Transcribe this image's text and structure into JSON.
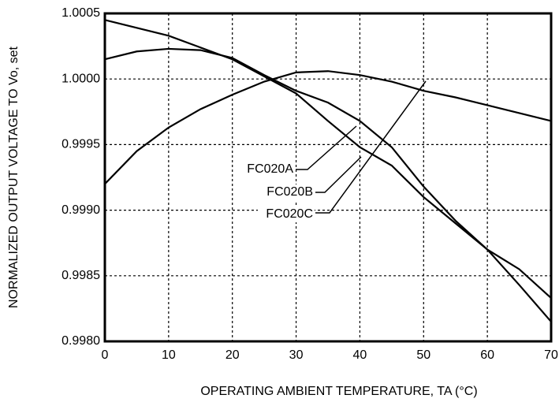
{
  "chart_data": {
    "type": "line",
    "x_label": "OPERATING AMBIENT TEMPERATURE, TA (°C)",
    "y_label": "NORMALIZED OUTPUT VOLTAGE TO Vo, set",
    "x": [
      0,
      5,
      10,
      15,
      20,
      25,
      30,
      35,
      40,
      45,
      50,
      55,
      60,
      65,
      70
    ],
    "series": [
      {
        "name": "FC020A",
        "color": "#000000",
        "values": [
          1.00015,
          1.00021,
          1.00023,
          1.00022,
          1.00016,
          1.00003,
          0.99991,
          0.99982,
          0.99968,
          0.99948,
          0.99918,
          0.99892,
          0.9987,
          0.99855,
          0.99833
        ]
      },
      {
        "name": "FC020B",
        "color": "#000000",
        "values": [
          1.00045,
          1.00039,
          1.00033,
          1.00024,
          1.00015,
          1.00002,
          0.99989,
          0.99968,
          0.99948,
          0.99934,
          0.9991,
          0.9989,
          0.9987,
          0.99843,
          0.99815
        ]
      },
      {
        "name": "FC020C",
        "color": "#000000",
        "values": [
          0.9992,
          0.99945,
          0.99963,
          0.99977,
          0.99988,
          0.99998,
          1.00005,
          1.00006,
          1.00003,
          0.99998,
          0.99991,
          0.99986,
          0.9998,
          0.99974,
          0.99968
        ]
      }
    ],
    "xlim": [
      0,
      70
    ],
    "xticks": [
      0,
      10,
      20,
      30,
      40,
      50,
      60,
      70
    ],
    "ylim": [
      0.998,
      1.0005
    ],
    "yticks": [
      {
        "value": 0.998,
        "label": "0.9980"
      },
      0.9985,
      {
        "value": 0.999,
        "label": "0.9990"
      },
      0.9995,
      {
        "value": 1.0,
        "label": "1.0000"
      },
      1.0005
    ],
    "grid": true
  }
}
